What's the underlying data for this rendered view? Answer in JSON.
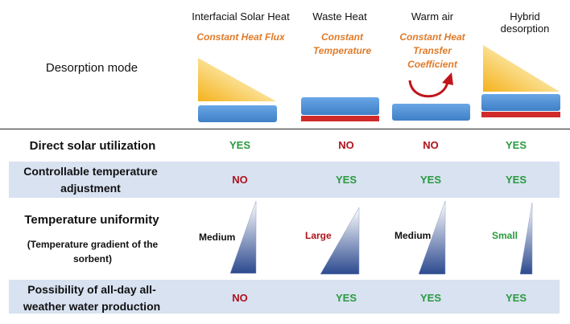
{
  "header": {
    "row_label": "Desorption mode",
    "columns": [
      {
        "title": "Interfacial Solar Heat",
        "subtitle": "Constant Heat Flux"
      },
      {
        "title": "Waste Heat",
        "subtitle": "Constant Temperature"
      },
      {
        "title": "Warm air",
        "subtitle": "Constant Heat Transfer Coefficient"
      },
      {
        "title": "Hybrid desorption",
        "subtitle": ""
      }
    ]
  },
  "rows": {
    "solar": {
      "label": "Direct solar utilization",
      "values": [
        "YES",
        "NO",
        "NO",
        "YES"
      ]
    },
    "control": {
      "label": "Controllable temperature adjustment",
      "values": [
        "NO",
        "YES",
        "YES",
        "YES"
      ]
    },
    "uniformity": {
      "label": "Temperature uniformity",
      "sublabel": "(Temperature gradient of the sorbent)",
      "values": [
        "Medium",
        "Large",
        "Medium",
        "Small"
      ]
    },
    "allday": {
      "label": "Possibility of all-day all-weather water production",
      "values": [
        "NO",
        "YES",
        "YES",
        "YES"
      ]
    }
  },
  "colors": {
    "yes": "#2a9a3e",
    "no": "#b0121b",
    "row_band": "#d8e2f1",
    "bar_blue": "#4f8fd6",
    "bar_red": "#d02a2a",
    "accent_orange": "#e07b2a"
  }
}
